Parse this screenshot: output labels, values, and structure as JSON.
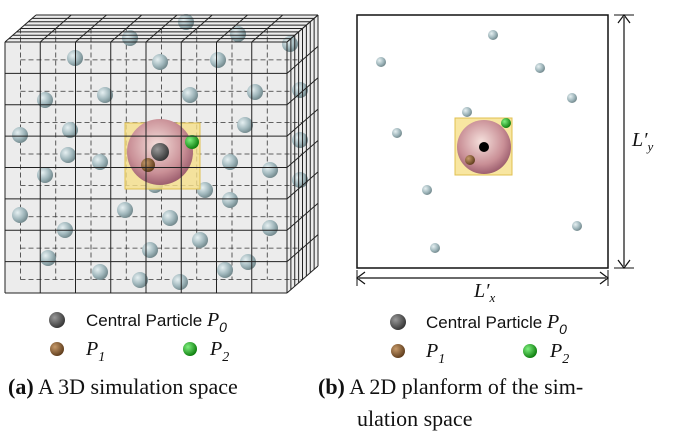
{
  "panels": [
    {
      "legend": [
        {
          "label": "Central Particle ",
          "symbol": "P",
          "sub": "0"
        },
        {
          "symbol": "P",
          "sub": "1"
        },
        {
          "symbol": "P",
          "sub": "2"
        }
      ],
      "caption": {
        "tag": "(a)",
        "lines": [
          "A 3D simulation space"
        ]
      }
    },
    {
      "legend": [
        {
          "label": "Central Particle ",
          "symbol": "P",
          "sub": "0"
        },
        {
          "symbol": "P",
          "sub": "1"
        },
        {
          "symbol": "P",
          "sub": "2"
        }
      ],
      "caption": {
        "tag": "(b)",
        "lines": [
          "A 2D planform of the sim-",
          "ulation space"
        ]
      },
      "dimensions": {
        "x": {
          "main": "L′",
          "sub": "x"
        },
        "y": {
          "main": "L′",
          "sub": "y"
        }
      }
    }
  ]
}
